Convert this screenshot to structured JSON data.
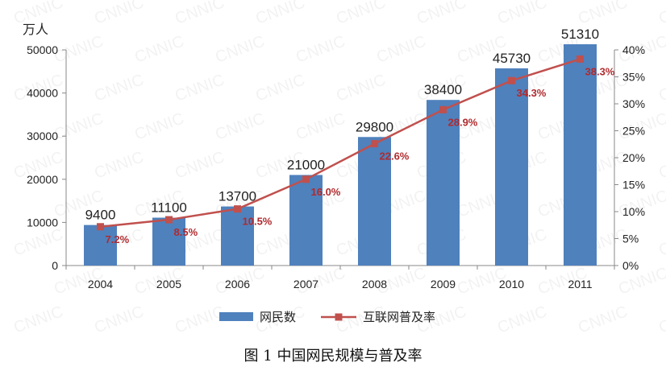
{
  "chart_data": {
    "type": "bar+line",
    "title": "",
    "unit_left": "万人",
    "categories": [
      "2004",
      "2005",
      "2006",
      "2007",
      "2008",
      "2009",
      "2010",
      "2011"
    ],
    "series": [
      {
        "name": "网民数",
        "type": "bar",
        "axis": "left",
        "values": [
          9400,
          11100,
          13700,
          21000,
          29800,
          38400,
          45730,
          51310
        ],
        "labels": [
          "9400",
          "11100",
          "13700",
          "21000",
          "29800",
          "38400",
          "45730",
          "51310"
        ],
        "color": "#4f81bd"
      },
      {
        "name": "互联网普及率",
        "type": "line",
        "axis": "right",
        "values": [
          7.2,
          8.5,
          10.5,
          16.0,
          22.6,
          28.9,
          34.3,
          38.3
        ],
        "labels": [
          "7.2%",
          "8.5%",
          "10.5%",
          "16.0%",
          "22.6%",
          "28.9%",
          "34.3%",
          "38.3%"
        ],
        "color": "#c0504d"
      }
    ],
    "y_left": {
      "ylim": [
        0,
        50000
      ],
      "ticks": [
        "0",
        "10000",
        "20000",
        "30000",
        "40000",
        "50000"
      ]
    },
    "y_right": {
      "ylim": [
        0,
        40
      ],
      "ticks": [
        "0%",
        "5%",
        "10%",
        "15%",
        "20%",
        "25%",
        "30%",
        "35%",
        "40%"
      ]
    },
    "grid": false,
    "legend_position": "bottom"
  },
  "caption": "图 1 中国网民规模与普及率"
}
